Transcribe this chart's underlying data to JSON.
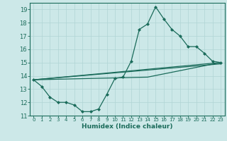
{
  "title": "",
  "xlabel": "Humidex (Indice chaleur)",
  "background_color": "#cce8e8",
  "line_color": "#1a6b5a",
  "grid_color": "#b0d4d4",
  "xlim": [
    -0.5,
    23.5
  ],
  "ylim": [
    11,
    19.5
  ],
  "xticks": [
    0,
    1,
    2,
    3,
    4,
    5,
    6,
    7,
    8,
    9,
    10,
    11,
    12,
    13,
    14,
    15,
    16,
    17,
    18,
    19,
    20,
    21,
    22,
    23
  ],
  "yticks": [
    11,
    12,
    13,
    14,
    15,
    16,
    17,
    18,
    19
  ],
  "line1_x": [
    0,
    1,
    2,
    3,
    4,
    5,
    6,
    7,
    8,
    9,
    10,
    11,
    12,
    13,
    14,
    15,
    16,
    17,
    18,
    19,
    20,
    21,
    22,
    23
  ],
  "line1_y": [
    13.7,
    13.2,
    12.4,
    12.0,
    12.0,
    11.8,
    11.3,
    11.3,
    11.5,
    12.6,
    13.8,
    13.9,
    15.1,
    17.5,
    17.9,
    19.2,
    18.3,
    17.5,
    17.0,
    16.2,
    16.2,
    15.7,
    15.1,
    15.0
  ],
  "line2_x": [
    0,
    23
  ],
  "line2_y": [
    13.7,
    15.0
  ],
  "line3_x": [
    0,
    23
  ],
  "line3_y": [
    13.7,
    15.0
  ],
  "line4_x": [
    0,
    14,
    23
  ],
  "line4_y": [
    13.7,
    13.9,
    15.0
  ],
  "line5_x": [
    0,
    23
  ],
  "line5_y": [
    13.7,
    14.9
  ]
}
